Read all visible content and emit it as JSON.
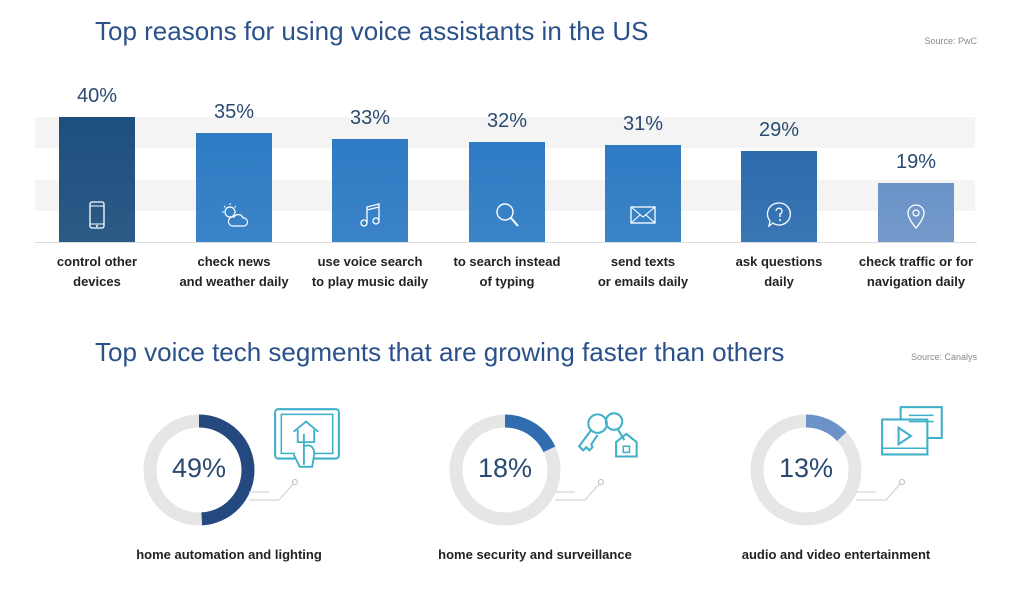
{
  "chart_data": [
    {
      "type": "bar",
      "title": "Top reasons for using voice assistants in the US",
      "source": "Source: PwC",
      "categories": [
        [
          "control other",
          "devices"
        ],
        [
          "check news",
          "and weather daily"
        ],
        [
          "use voice search",
          "to play music daily"
        ],
        [
          "to search instead",
          "of typing"
        ],
        [
          "send texts",
          "or emails daily"
        ],
        [
          "ask questions",
          "daily"
        ],
        [
          "check traffic or for",
          "navigation daily"
        ]
      ],
      "values": [
        40,
        35,
        33,
        32,
        31,
        29,
        19
      ],
      "value_labels": [
        "40%",
        "35%",
        "33%",
        "32%",
        "31%",
        "29%",
        "19%"
      ],
      "icons": [
        "smartphone-icon",
        "weather-icon",
        "music-note-icon",
        "search-icon",
        "envelope-icon",
        "question-bubble-icon",
        "location-pin-icon"
      ],
      "colors": [
        "#1d4f7e",
        "#2e7bc4",
        "#2e7bc4",
        "#2e7bc4",
        "#2e7bc4",
        "#2c6cae",
        "#6b93c7"
      ],
      "ylim": [
        0,
        40
      ],
      "grid": "horizontal bands"
    },
    {
      "type": "pie",
      "title": "Top voice tech segments that are growing faster than others",
      "source": "Source: Canalys",
      "categories": [
        "home automation and lighting",
        "home security and surveillance",
        "audio and video entertainment"
      ],
      "values": [
        49,
        18,
        13
      ],
      "value_labels": [
        "49%",
        "18%",
        "13%"
      ],
      "icons": [
        "smart-home-tablet-icon",
        "keys-house-icon",
        "media-player-icon"
      ],
      "colors": [
        "#24497e",
        "#2f6db0",
        "#6b93c7"
      ],
      "track_color": "#e6e6e6",
      "icon_color": "#3fb0c9"
    }
  ]
}
